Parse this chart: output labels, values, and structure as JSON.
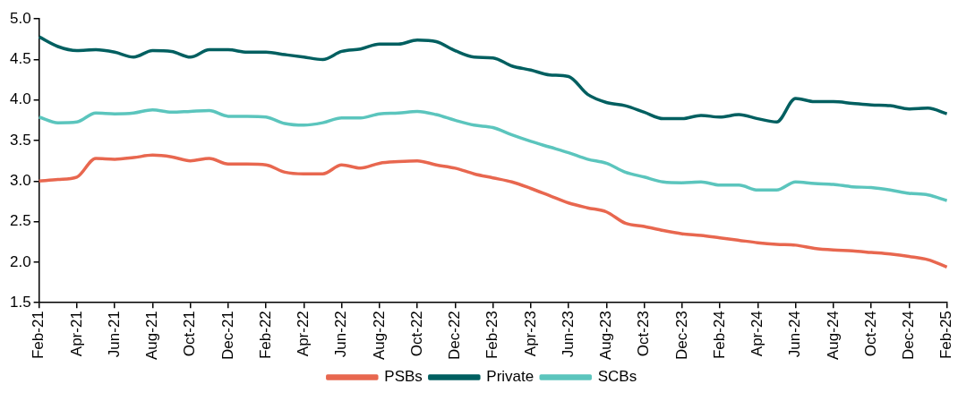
{
  "chart_data": {
    "type": "line",
    "categories": [
      "Feb-21",
      null,
      "Apr-21",
      null,
      "Jun-21",
      null,
      "Aug-21",
      null,
      "Oct-21",
      null,
      "Dec-21",
      null,
      "Feb-22",
      null,
      "Apr-22",
      null,
      "Jun-22",
      null,
      "Aug-22",
      null,
      "Oct-22",
      null,
      "Dec-22",
      null,
      "Feb-23",
      null,
      "Apr-23",
      null,
      "Jun-23",
      null,
      "Aug-23",
      null,
      "Oct-23",
      null,
      "Dec-23",
      null,
      "Feb-24",
      null,
      "Apr-24",
      null,
      "Jun-24",
      null,
      "Aug-24",
      null,
      "Oct-24",
      null,
      "Dec-24",
      null,
      "Feb-25"
    ],
    "series": [
      {
        "name": "PSBs",
        "color": "#e8674f",
        "values": [
          3.0,
          3.02,
          3.05,
          3.28,
          3.27,
          3.29,
          3.32,
          3.3,
          3.25,
          3.28,
          3.21,
          3.21,
          3.2,
          3.11,
          3.09,
          3.09,
          3.2,
          3.16,
          3.22,
          3.24,
          3.25,
          3.2,
          3.16,
          3.09,
          3.04,
          2.99,
          2.91,
          2.82,
          2.73,
          2.67,
          2.62,
          2.48,
          2.44,
          2.39,
          2.35,
          2.33,
          2.3,
          2.27,
          2.24,
          2.22,
          2.21,
          2.17,
          2.15,
          2.14,
          2.12,
          2.1,
          2.07,
          2.03,
          1.94
        ]
      },
      {
        "name": "Private",
        "color": "#005f60",
        "values": [
          4.78,
          4.66,
          4.61,
          4.62,
          4.59,
          4.53,
          4.61,
          4.6,
          4.53,
          4.62,
          4.62,
          4.59,
          4.59,
          4.56,
          4.53,
          4.5,
          4.6,
          4.63,
          4.69,
          4.69,
          4.74,
          4.72,
          4.61,
          4.53,
          4.52,
          4.42,
          4.37,
          4.31,
          4.29,
          4.07,
          3.97,
          3.93,
          3.85,
          3.77,
          3.77,
          3.81,
          3.79,
          3.82,
          3.77,
          3.73,
          4.02,
          3.98,
          3.98,
          3.96,
          3.94,
          3.93,
          3.89,
          3.9,
          3.83
        ]
      },
      {
        "name": "SCBs",
        "color": "#5bc5bd",
        "values": [
          3.79,
          3.72,
          3.73,
          3.84,
          3.83,
          3.84,
          3.88,
          3.85,
          3.86,
          3.87,
          3.8,
          3.8,
          3.79,
          3.71,
          3.69,
          3.72,
          3.78,
          3.78,
          3.83,
          3.84,
          3.86,
          3.82,
          3.75,
          3.69,
          3.66,
          3.57,
          3.49,
          3.42,
          3.35,
          3.27,
          3.22,
          3.11,
          3.05,
          2.99,
          2.98,
          2.99,
          2.95,
          2.95,
          2.89,
          2.89,
          2.99,
          2.97,
          2.96,
          2.93,
          2.92,
          2.89,
          2.85,
          2.83,
          2.76
        ]
      }
    ],
    "ylim": [
      1.5,
      5.0
    ],
    "yticks": [
      1.5,
      {
        "value": 2,
        "label": "2.0"
      },
      2.5,
      {
        "value": 3,
        "label": "3.0"
      },
      3.5,
      {
        "value": 4,
        "label": "4.0"
      },
      4.5,
      {
        "value": 5,
        "label": "5.0"
      }
    ],
    "legend": "bottom",
    "marker": "none",
    "line_style": "solid"
  }
}
